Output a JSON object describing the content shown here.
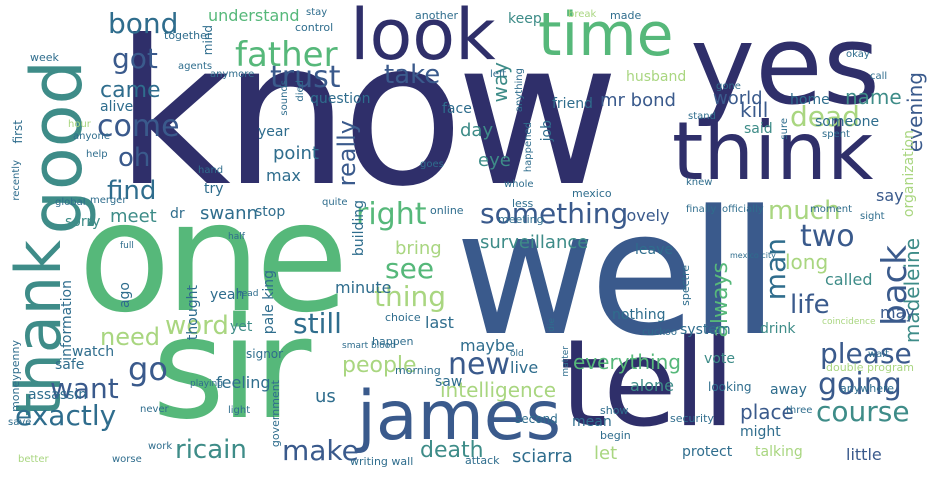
{
  "words": {
    "know": "know",
    "well": "well",
    "sir": "sir",
    "one": "one",
    "tell": "tell",
    "yes": "yes",
    "time": "time",
    "think": "think",
    "look": "look",
    "good": "good",
    "james": "james",
    "thank": "thank",
    "father": "father",
    "trust": "trust",
    "bond": "bond",
    "go": "go",
    "got": "got",
    "came": "came",
    "come": "come",
    "oh": "oh",
    "find": "find",
    "right": "right",
    "something": "something",
    "see": "see",
    "thing": "thing",
    "much": "much",
    "two": "two",
    "dead": "dead",
    "back": "back",
    "man": "man",
    "long": "long",
    "life": "life",
    "going": "going",
    "course": "course",
    "please": "please",
    "still": "still",
    "word": "word",
    "need": "need",
    "want": "want",
    "exactly": "exactly",
    "ricain": "ricain",
    "make": "make",
    "death": "death",
    "new": "new",
    "people": "people",
    "intelligence": "intelligence",
    "everything": "everything",
    "always": "always",
    "madeleine": "madeleine",
    "evening": "evening",
    "world": "world",
    "home": "home",
    "name": "name",
    "mr_bond": "mr bond",
    "take": "take",
    "way": "way",
    "kill": "kill",
    "said": "said",
    "really": "really",
    "day": "day",
    "eye": "eye",
    "surveillance": "surveillance",
    "bring": "bring",
    "leave": "leave",
    "point": "point",
    "year": "year",
    "max": "max",
    "try": "try",
    "swann": "swann",
    "stop": "stop",
    "dr": "dr",
    "meet": "meet",
    "sorry": "sorry",
    "lovely": "lovely",
    "say": "say",
    "may": "may",
    "called": "called",
    "little": "little",
    "talking": "talking",
    "protect": "protect",
    "sciarra": "sciarra",
    "let": "let",
    "place": "place",
    "might": "might",
    "away": "away",
    "mean": "mean",
    "alone": "alone",
    "nothing": "nothing",
    "system": "system",
    "drink": "drink",
    "last": "last",
    "minute": "minute",
    "yeah": "yeah",
    "pale_king": "pale king",
    "us": "us",
    "feeling": "feeling",
    "watch": "watch",
    "safe": "safe",
    "assassin": "assassin",
    "yet": "yet",
    "ago": "ago",
    "thought": "thought",
    "maybe": "maybe",
    "saw": "saw",
    "live": "live",
    "understand": "understand",
    "question": "question",
    "face": "face",
    "alive": "alive",
    "friend": "friend",
    "husband": "husband",
    "keep": "keep",
    "someone": "someone",
    "job": "job",
    "building": "building",
    "vote": "vote",
    "organization": "organization",
    "information": "information",
    "moneypenny": "moneypenny",
    "signor": "signor",
    "government": "government",
    "morning": "morning",
    "double_program": "double program",
    "looking": "looking",
    "anywhere": "anywhere",
    "security": "security",
    "show": "show",
    "second": "second",
    "attack": "attack",
    "begin": "begin",
    "writing_wall": "writing wall",
    "spectre": "spectre",
    "choice": "choice",
    "happen": "happen",
    "mexico_city": "mexico city",
    "online": "online",
    "meeting": "meeting",
    "less": "less",
    "mexico": "mexico",
    "another": "another",
    "made": "made",
    "control": "control",
    "stay": "stay",
    "together": "together",
    "mind": "mind",
    "agents": "agents",
    "anymore": "anymore",
    "week": "week",
    "first": "first",
    "recently": "recently",
    "global": "global",
    "merger": "merger",
    "quite": "quite",
    "hand": "hand",
    "help": "help",
    "anyone": "anyone",
    "sounds": "sounds",
    "died": "died",
    "left": "left",
    "anything": "anything",
    "happened": "happened",
    "goes": "goes",
    "whole": "whole",
    "knew": "knew",
    "finally": "finally",
    "officially": "officially",
    "moment": "moment",
    "sight": "sight",
    "spent": "spent",
    "sure": "sure",
    "stand": "stand",
    "gone": "gone",
    "call": "call",
    "okay": "okay",
    "break": "break",
    "never": "never",
    "light": "light",
    "playing": "playing",
    "head": "head",
    "save": "save",
    "better": "better",
    "worse": "worse",
    "work": "work",
    "full": "full",
    "half": "half",
    "old": "old",
    "matter": "matter",
    "die": "die",
    "smart_blood": "smart blood",
    "cuckoo": "cuckoo",
    "wait": "wait",
    "coincidence": "coincidence",
    "three": "three",
    "hour": "hour"
  }
}
